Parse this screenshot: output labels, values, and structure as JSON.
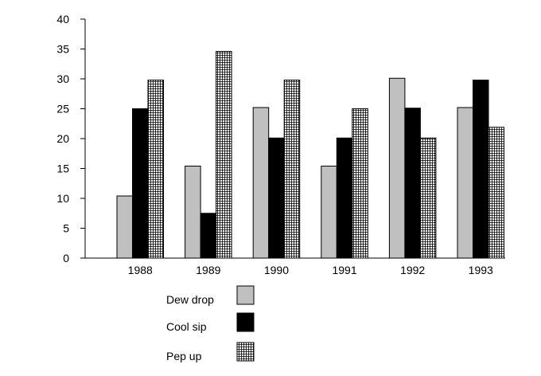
{
  "chart_data": {
    "type": "bar",
    "title": "",
    "xlabel": "",
    "ylabel": "",
    "categories": [
      "1988",
      "1989",
      "1990",
      "1991",
      "1992",
      "1993"
    ],
    "ylim": [
      0,
      40
    ],
    "yticks": [
      0,
      5,
      10,
      15,
      20,
      25,
      30,
      35,
      40
    ],
    "grid": false,
    "legend_position": "bottom-left",
    "series": [
      {
        "name": "Dew drop",
        "values": [
          10.4,
          15.4,
          25.2,
          15.4,
          30.1,
          25.2
        ],
        "fill": "#c0c0c0",
        "pattern": "solid"
      },
      {
        "name": "Cool sip",
        "values": [
          25.0,
          7.5,
          20.1,
          20.1,
          25.1,
          29.8
        ],
        "fill": "#000000",
        "pattern": "solid"
      },
      {
        "name": "Pep up",
        "values": [
          29.8,
          34.6,
          29.8,
          25.0,
          20.1,
          21.9
        ],
        "fill": "#ffffff",
        "pattern": "grid"
      }
    ]
  }
}
